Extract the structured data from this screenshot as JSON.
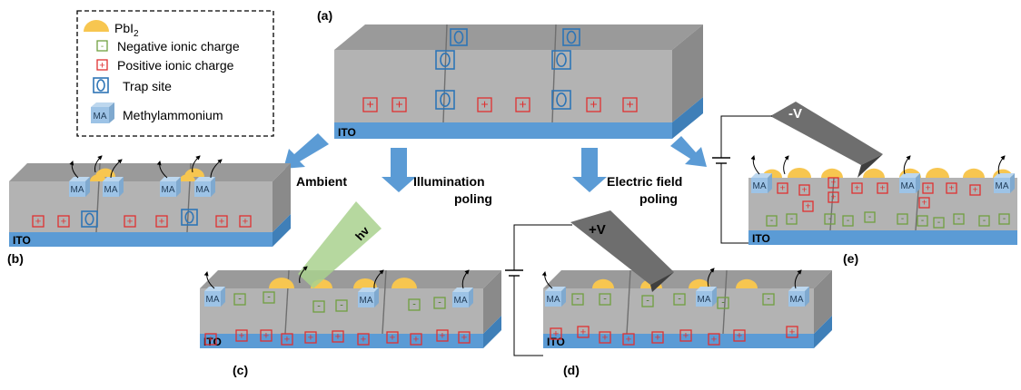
{
  "legend": {
    "pbi2": "PbI",
    "pbi2_sub": "2",
    "negative": "Negative ionic charge",
    "positive": "Positive ionic charge",
    "trap": "Trap site",
    "ma_box": "MA",
    "ma": "Methylammonium"
  },
  "panels": {
    "a": "(a)",
    "b": "(b)",
    "c": "(c)",
    "d": "(d)",
    "e": "(e)"
  },
  "arrows": {
    "ambient": "Ambient",
    "illum_1": "Illumination",
    "illum_2": "poling",
    "efield_1": "Electric field",
    "efield_2": "poling"
  },
  "labels": {
    "ito": "ITO",
    "ma": "MA",
    "hv": "hv",
    "plus_v": "+V",
    "minus_v": "-V",
    "minus_sign": "-",
    "plus_sign": "+"
  },
  "colors": {
    "film": "#b3b3b3",
    "film_top": "#9a9a9a",
    "film_side": "#8a8a8a",
    "ito": "#5b9bd5",
    "pbi2": "#f7c650",
    "trap": "#2e75b6",
    "negative": "#70a040",
    "positive": "#e03030",
    "ma": "#9dc3e6",
    "tip": "#6e6e6e",
    "light": "#a9d18e",
    "arrow": "#5b9bd5"
  }
}
